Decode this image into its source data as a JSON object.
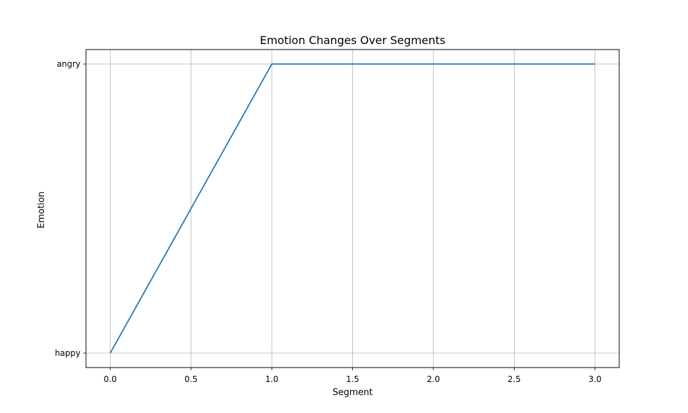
{
  "chart_data": {
    "type": "line",
    "title": "Emotion Changes Over Segments",
    "xlabel": "Segment",
    "ylabel": "Emotion",
    "x_ticks": [
      "0.0",
      "0.5",
      "1.0",
      "1.5",
      "2.0",
      "2.5",
      "3.0"
    ],
    "y_categories": [
      "happy",
      "angry"
    ],
    "xlim": [
      -0.15,
      3.15
    ],
    "grid": true,
    "series": [
      {
        "x": [
          0,
          1,
          2,
          3
        ],
        "y": [
          "happy",
          "angry",
          "angry",
          "angry"
        ],
        "color": "#1f77b4"
      }
    ]
  }
}
